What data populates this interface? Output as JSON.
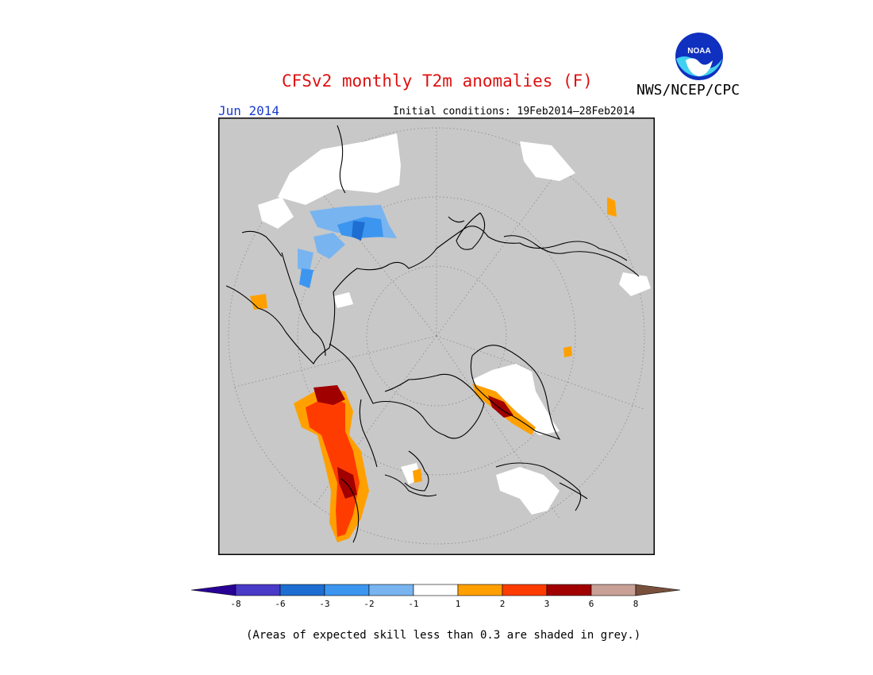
{
  "title": "CFSv2 monthly T2m anomalies (F)",
  "agency": "NWS/NCEP/CPC",
  "logo_text": "NOAA",
  "valid_month": "Jun 2014",
  "initial_conditions": "Initial conditions: 19Feb2014–28Feb2014",
  "footnote": "(Areas of expected skill less than 0.3 are shaded in grey.)",
  "colors": {
    "background_grey": "#c8c8c8",
    "coastline": "#000000",
    "title_red": "#dd1111",
    "month_blue": "#1a3ccf"
  },
  "colorbar": {
    "bins": [
      {
        "color": "#280096"
      },
      {
        "color": "#4a3ac8"
      },
      {
        "color": "#1e6ed2"
      },
      {
        "color": "#3c96f0"
      },
      {
        "color": "#78b4f0"
      },
      {
        "color": "#ffffff"
      },
      {
        "color": "#ffa000"
      },
      {
        "color": "#ff3c00"
      },
      {
        "color": "#a00000"
      },
      {
        "color": "#c8a096"
      },
      {
        "color": "#78503c"
      }
    ],
    "labels": [
      "-8",
      "-6",
      "-3",
      "-2",
      "-1",
      "1",
      "2",
      "3",
      "6",
      "8"
    ]
  }
}
